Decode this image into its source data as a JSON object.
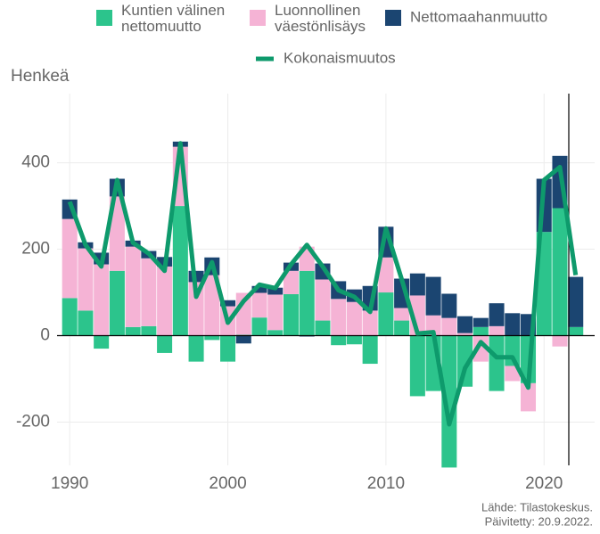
{
  "chart_data": {
    "type": "bar",
    "y_label": "Henkeä",
    "source": [
      "Lähde: Tilastokeskus.",
      "Päivitetty: 20.9.2022."
    ],
    "x": [
      1990,
      1991,
      1992,
      1993,
      1994,
      1995,
      1996,
      1997,
      1998,
      1999,
      2000,
      2001,
      2002,
      2003,
      2004,
      2005,
      2006,
      2007,
      2008,
      2009,
      2010,
      2011,
      2012,
      2013,
      2014,
      2015,
      2016,
      2017,
      2018,
      2019,
      2020,
      2021,
      2022
    ],
    "series": [
      {
        "name": "Kuntien välinen nettomuutto",
        "color": "#2cc48c",
        "values": [
          87,
          58,
          -30,
          150,
          20,
          22,
          -40,
          300,
          -60,
          -10,
          -60,
          2,
          42,
          13,
          96,
          150,
          35,
          -22,
          -20,
          -65,
          100,
          35,
          -140,
          -128,
          -305,
          -118,
          20,
          -128,
          -70,
          -110,
          240,
          295,
          20
        ]
      },
      {
        "name": "Luonnollinen väestönlisäys",
        "color": "#f5b3d5",
        "values": [
          183,
          144,
          165,
          172,
          186,
          157,
          160,
          137,
          124,
          140,
          68,
          97,
          57,
          82,
          54,
          56,
          95,
          85,
          78,
          58,
          81,
          29,
          93,
          47,
          41,
          6,
          -60,
          22,
          -35,
          -65,
          0,
          -25,
          0
        ]
      },
      {
        "name": "Nettomaahanmuutto",
        "color": "#1b4571",
        "values": [
          45,
          14,
          27,
          41,
          14,
          17,
          22,
          12,
          26,
          41,
          14,
          -18,
          16,
          16,
          19,
          -2,
          37,
          41,
          29,
          57,
          71,
          68,
          51,
          89,
          56,
          39,
          21,
          53,
          52,
          50,
          123,
          121,
          116
        ]
      }
    ],
    "line": {
      "name": "Kokonaismuutos",
      "color": "#0e9a6c",
      "values": [
        310,
        210,
        160,
        360,
        215,
        190,
        150,
        445,
        90,
        170,
        30,
        80,
        118,
        110,
        165,
        210,
        160,
        105,
        90,
        55,
        248,
        130,
        5,
        8,
        -205,
        -75,
        -15,
        -50,
        -50,
        -120,
        360,
        390,
        140
      ]
    },
    "xlim": [
      1989.2,
      2023.2
    ],
    "xticks": [
      1990,
      2000,
      2010,
      2020
    ],
    "ylim": [
      -300,
      560
    ],
    "yticks": [
      -200,
      0,
      200,
      400
    ],
    "grid": true
  }
}
